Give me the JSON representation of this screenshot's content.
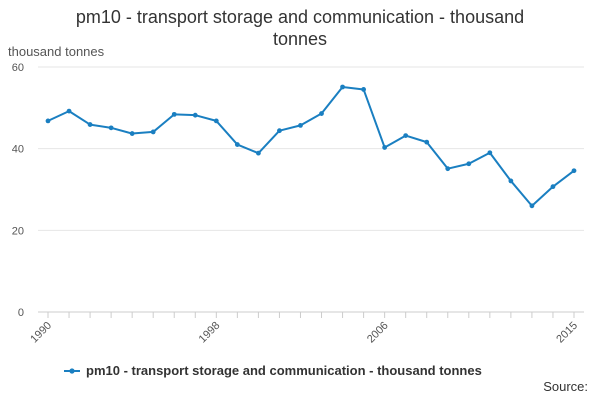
{
  "title": "pm10 - transport storage and communication - thousand tonnes",
  "y_unit_label": "thousand tonnes",
  "source_label": "Source:",
  "colors": {
    "series": "#1a7fc1",
    "grid": "#e6e6e6",
    "axis": "#cccccc",
    "text": "#333333"
  },
  "chart_data": {
    "type": "line",
    "title": "pm10 - transport storage and communication - thousand tonnes",
    "xlabel": "",
    "ylabel": "thousand tonnes",
    "x": [
      1990,
      1991,
      1992,
      1993,
      1994,
      1995,
      1996,
      1997,
      1998,
      1999,
      2000,
      2001,
      2002,
      2003,
      2004,
      2005,
      2006,
      2007,
      2008,
      2009,
      2010,
      2011,
      2012,
      2013,
      2014,
      2015
    ],
    "xticks": [
      "1990",
      "1998",
      "2006",
      "2015"
    ],
    "yticks": [
      0,
      20,
      40,
      60
    ],
    "ylim": [
      0,
      60
    ],
    "xlim": [
      1990,
      2015
    ],
    "grid": true,
    "legend_position": "bottom",
    "series": [
      {
        "name": "pm10 - transport storage and communication - thousand tonnes",
        "values": [
          46.8,
          49.2,
          45.9,
          45.1,
          43.7,
          44.1,
          48.4,
          48.2,
          46.8,
          41.0,
          38.9,
          44.4,
          45.7,
          48.6,
          55.1,
          54.5,
          40.3,
          43.2,
          41.6,
          35.1,
          36.3,
          39.0,
          32.1,
          26.0,
          30.7,
          34.6
        ]
      }
    ]
  }
}
